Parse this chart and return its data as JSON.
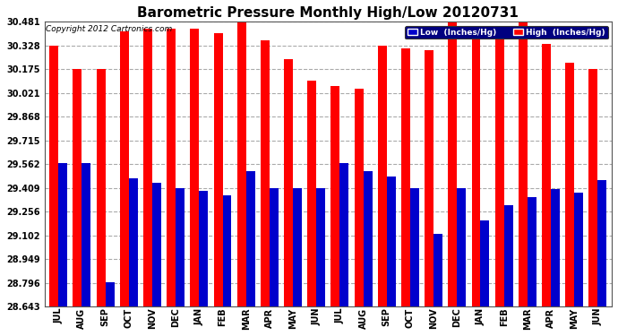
{
  "title": "Barometric Pressure Monthly High/Low 20120731",
  "copyright": "Copyright 2012 Cartronics.com",
  "legend_low": "Low  (Inches/Hg)",
  "legend_high": "High  (Inches/Hg)",
  "months": [
    "JUL",
    "AUG",
    "SEP",
    "OCT",
    "NOV",
    "DEC",
    "JAN",
    "FEB",
    "MAR",
    "APR",
    "MAY",
    "JUN",
    "JUL",
    "AUG",
    "SEP",
    "OCT",
    "NOV",
    "DEC",
    "JAN",
    "FEB",
    "MAR",
    "APR",
    "MAY",
    "JUN"
  ],
  "high_values": [
    30.33,
    30.18,
    30.18,
    30.42,
    30.44,
    30.44,
    30.44,
    30.41,
    30.48,
    30.36,
    30.24,
    30.1,
    30.07,
    30.05,
    30.33,
    30.31,
    30.3,
    30.48,
    30.38,
    30.44,
    30.48,
    30.34,
    30.22,
    30.18
  ],
  "low_values": [
    29.57,
    29.57,
    28.8,
    29.47,
    29.44,
    29.41,
    29.39,
    29.36,
    29.52,
    29.41,
    29.41,
    29.41,
    29.57,
    29.52,
    29.48,
    29.41,
    29.11,
    29.41,
    29.2,
    29.3,
    29.35,
    29.4,
    29.38,
    29.46
  ],
  "ymin": 28.643,
  "ymax": 30.481,
  "yticks": [
    28.643,
    28.796,
    28.949,
    29.102,
    29.256,
    29.409,
    29.562,
    29.715,
    29.868,
    30.021,
    30.175,
    30.328,
    30.481
  ],
  "bar_width": 0.38,
  "high_color": "#ff0000",
  "low_color": "#0000cc",
  "bg_color": "#ffffff",
  "grid_color": "#aaaaaa",
  "title_fontsize": 11,
  "tick_fontsize": 7,
  "legend_bg": "#000080"
}
